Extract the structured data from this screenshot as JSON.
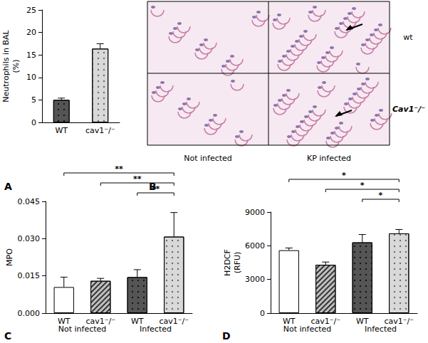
{
  "chart_data": [
    {
      "type": "bar",
      "label": "A",
      "y_label": "Neutrophils in BAL\n(%)",
      "categories": [
        "WT",
        "cav1⁻/⁻"
      ],
      "values": [
        5.0,
        16.4
      ],
      "errors": [
        0.4,
        1.1
      ],
      "colors": [
        "#555555",
        "#d9d9d9"
      ],
      "ylim": [
        0,
        25
      ],
      "yticks": [
        0,
        5,
        10,
        15,
        20,
        25
      ],
      "grid": false
    },
    {
      "type": "bar",
      "label": "C",
      "y_label": "MPO",
      "categories": [
        "WT",
        "cav1⁻/⁻",
        "WT",
        "cav1⁻/⁻"
      ],
      "values": [
        0.0105,
        0.013,
        0.0145,
        0.0308
      ],
      "errors": [
        0.004,
        0.001,
        0.003,
        0.0097
      ],
      "colors": [
        "#ffffff",
        "#bfbfbf",
        "#555555",
        "#d9d9d9"
      ],
      "groups": [
        {
          "text": "Not infected",
          "from": 0,
          "to": 1
        },
        {
          "text": "Infected",
          "from": 2,
          "to": 3
        }
      ],
      "annotations": [
        {
          "from": 0,
          "to": 3,
          "text": "**"
        },
        {
          "from": 1,
          "to": 3,
          "text": "**"
        },
        {
          "from": 2,
          "to": 3,
          "text": "**"
        }
      ],
      "ylim": [
        0,
        0.045
      ],
      "yticks": [
        {
          "value": 0,
          "label": "0.000"
        },
        {
          "value": 0.015,
          "label": "0.015"
        },
        {
          "value": 0.03,
          "label": "0.030"
        },
        {
          "value": 0.045,
          "label": "0.045"
        }
      ],
      "grid": false
    },
    {
      "type": "bar",
      "label": "D",
      "y_label": "H2DCF\n(RFU)",
      "categories": [
        "WT",
        "cav1⁻/⁻",
        "WT",
        "cav1⁻/⁻"
      ],
      "values": [
        5600,
        4300,
        6300,
        7100
      ],
      "errors": [
        200,
        250,
        700,
        350
      ],
      "colors": [
        "#ffffff",
        "#bfbfbf",
        "#555555",
        "#d9d9d9"
      ],
      "groups": [
        {
          "text": "Not infected",
          "from": 0,
          "to": 1
        },
        {
          "text": "Infected",
          "from": 2,
          "to": 3
        }
      ],
      "annotations": [
        {
          "from": 0,
          "to": 3,
          "text": "*"
        },
        {
          "from": 1,
          "to": 3,
          "text": "*"
        },
        {
          "from": 2,
          "to": 3,
          "text": "*"
        }
      ],
      "ylim": [
        0,
        9000
      ],
      "yticks": [
        0,
        3000,
        6000,
        9000
      ],
      "grid": false
    }
  ],
  "image_panel": {
    "label": "B",
    "columns": [
      "Not infected",
      "KP infected"
    ],
    "rows": [
      "wt",
      "Cav1⁻/⁻"
    ]
  }
}
